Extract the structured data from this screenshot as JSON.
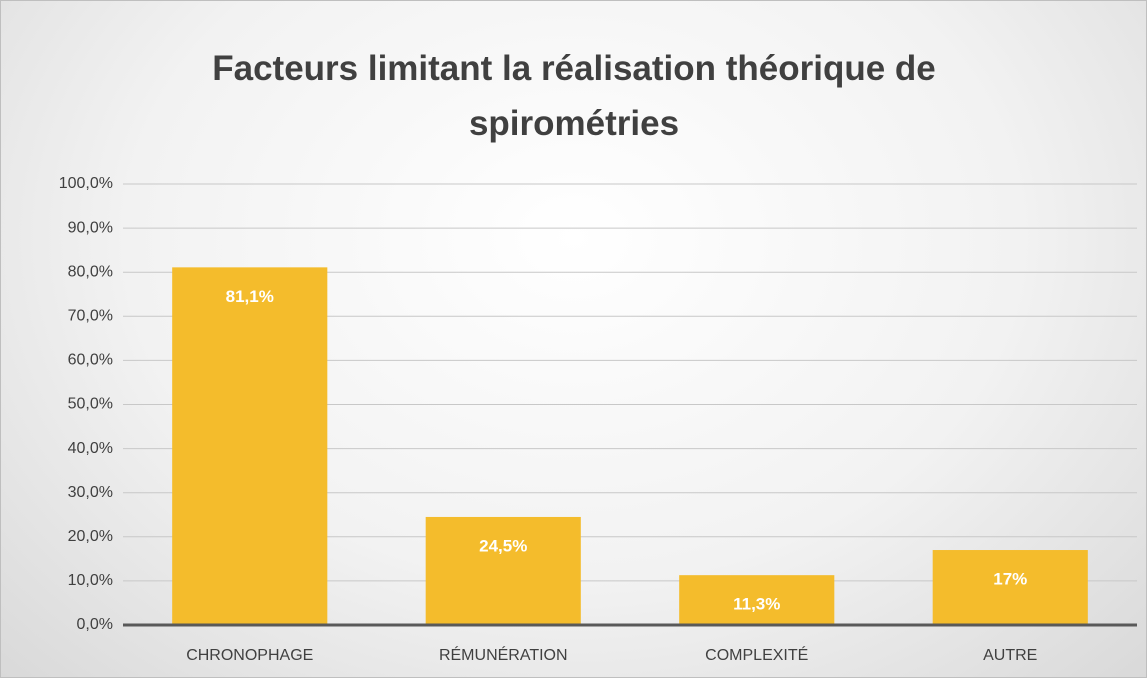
{
  "chart_data": {
    "type": "bar",
    "title": "Facteurs limitant la réalisation théorique de spirométries",
    "categories": [
      "CHRONOPHAGE",
      "RÉMUNÉRATION",
      "COMPLEXITÉ",
      "AUTRE"
    ],
    "values": [
      81.1,
      24.5,
      11.3,
      17
    ],
    "value_labels": [
      "81,1%",
      "24,5%",
      "11,3%",
      "17%"
    ],
    "color": "#f4bc2c",
    "ylim": [
      0,
      100
    ],
    "yticks": [
      {
        "value": 0,
        "label": "0,0%"
      },
      {
        "value": 10,
        "label": "10,0%"
      },
      {
        "value": 20,
        "label": "20,0%"
      },
      {
        "value": 30,
        "label": "30,0%"
      },
      {
        "value": 40,
        "label": "40,0%"
      },
      {
        "value": 50,
        "label": "50,0%"
      },
      {
        "value": 60,
        "label": "60,0%"
      },
      {
        "value": 70,
        "label": "70,0%"
      },
      {
        "value": 80,
        "label": "80,0%"
      },
      {
        "value": 90,
        "label": "90,0%"
      },
      {
        "value": 100,
        "label": "100,0%"
      }
    ],
    "grid": true
  }
}
